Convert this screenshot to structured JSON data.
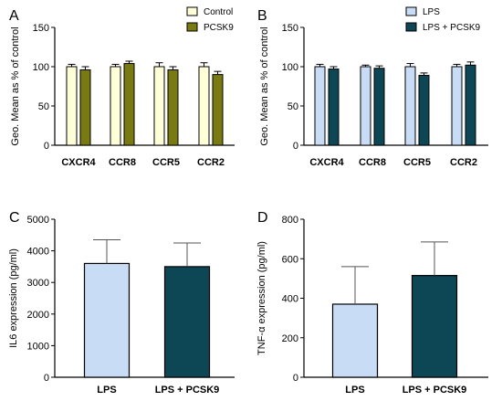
{
  "chart_data": [
    {
      "panel": "A",
      "type": "bar",
      "categories": [
        "CXCR4",
        "CCR8",
        "CCR5",
        "CCR2"
      ],
      "ylabel": "Geo. Mean as % of control",
      "ylim": [
        0,
        150
      ],
      "yticks": [
        0,
        50,
        100,
        150
      ],
      "legend_position": "top-right",
      "series": [
        {
          "name": "Control",
          "values": [
            100,
            100,
            100,
            100
          ],
          "errors": [
            3,
            3,
            5,
            5
          ],
          "color": "#ffffd8"
        },
        {
          "name": "PCSK9",
          "values": [
            96,
            104,
            96,
            90
          ],
          "errors": [
            4,
            3,
            4,
            4
          ],
          "color": "#7a7a12"
        }
      ]
    },
    {
      "panel": "B",
      "type": "bar",
      "categories": [
        "CXCR4",
        "CCR8",
        "CCR5",
        "CCR2"
      ],
      "ylabel": "Geo. Mean as % of control",
      "ylim": [
        0,
        150
      ],
      "yticks": [
        0,
        50,
        100,
        150
      ],
      "legend_position": "top-right",
      "series": [
        {
          "name": "LPS",
          "values": [
            100,
            100,
            100,
            100
          ],
          "errors": [
            3,
            2,
            4,
            3
          ],
          "color": "#c9dcf5"
        },
        {
          "name": "LPS + PCSK9",
          "values": [
            97,
            98,
            89,
            102
          ],
          "errors": [
            3,
            3,
            3,
            4
          ],
          "color": "#0d4755"
        }
      ]
    },
    {
      "panel": "C",
      "type": "bar",
      "categories": [
        "LPS",
        "LPS + PCSK9"
      ],
      "ylabel": "IL6 expression (pg/ml)",
      "ylim": [
        0,
        5000
      ],
      "yticks": [
        0,
        1000,
        2000,
        3000,
        4000,
        5000
      ],
      "series": [
        {
          "values": [
            3600,
            3500
          ],
          "errors": [
            750,
            750
          ],
          "colors": [
            "#c9dcf5",
            "#0d4755"
          ]
        }
      ]
    },
    {
      "panel": "D",
      "type": "bar",
      "categories": [
        "LPS",
        "LPS + PCSK9"
      ],
      "ylabel": "TNF-α expression (pg/ml)",
      "ylim": [
        0,
        800
      ],
      "yticks": [
        0,
        200,
        400,
        600,
        800
      ],
      "series": [
        {
          "values": [
            370,
            515
          ],
          "errors": [
            190,
            170
          ],
          "colors": [
            "#c9dcf5",
            "#0d4755"
          ]
        }
      ]
    }
  ]
}
